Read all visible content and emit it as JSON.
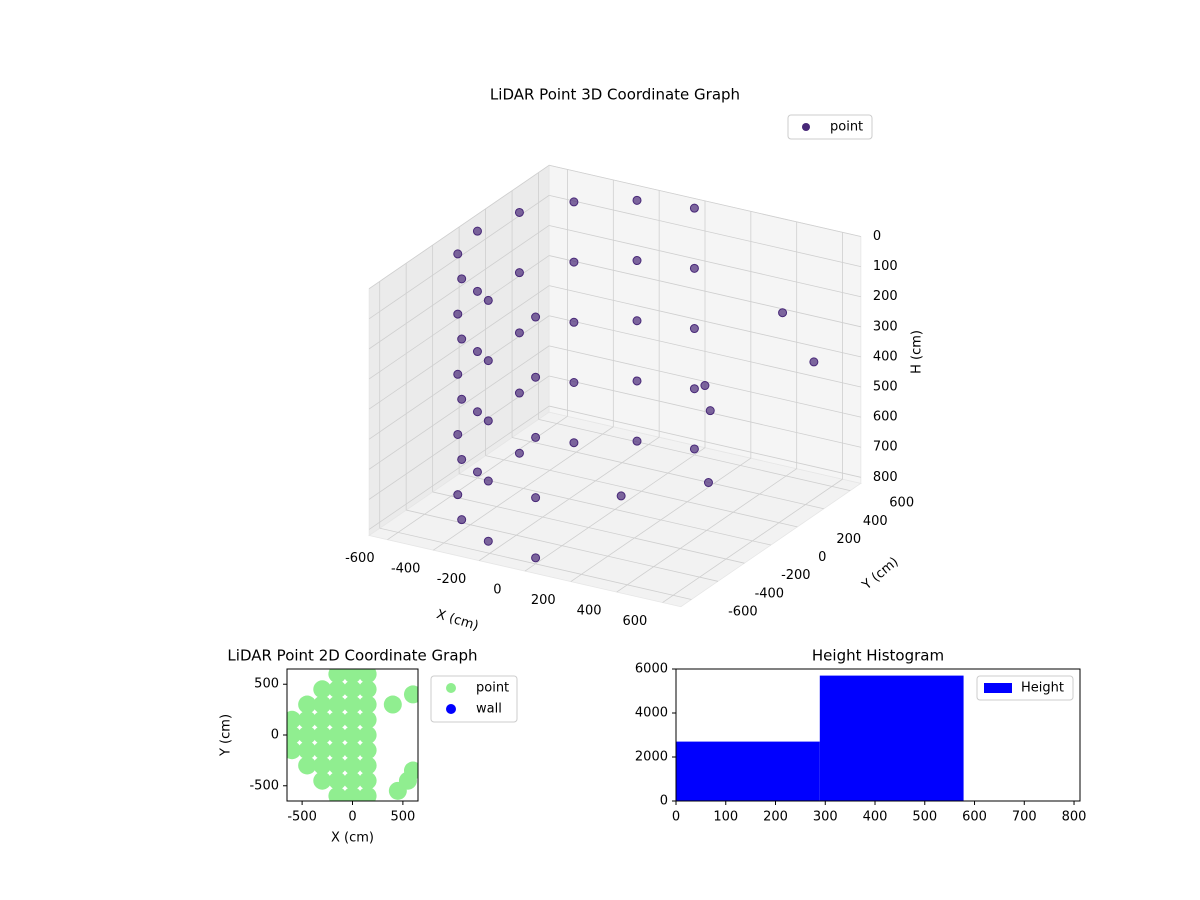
{
  "chart_data": [
    {
      "type": "scatter3d",
      "title": "LiDAR Point 3D Coordinate Graph",
      "xlabel": "X (cm)",
      "ylabel": "Y (cm)",
      "zlabel": "H (cm)",
      "xlim": [
        -680,
        680
      ],
      "ylim": [
        -680,
        680
      ],
      "zlim": [
        0,
        820
      ],
      "z_inverted": true,
      "xticks": [
        -600,
        -400,
        -200,
        0,
        200,
        400,
        600
      ],
      "yticks": [
        -600,
        -400,
        -200,
        0,
        200,
        400,
        600
      ],
      "zticks": [
        0,
        100,
        200,
        300,
        400,
        500,
        600,
        700,
        800
      ],
      "grid": true,
      "legend": "upper right",
      "series": [
        {
          "name": "point",
          "color": "#482878",
          "x": [
            0,
            -225,
            -424,
            -552,
            -600,
            -556,
            -424,
            -234,
            0,
            0,
            -225,
            -424,
            -552,
            -600,
            -556,
            -424,
            -234,
            0,
            0,
            -225,
            -424,
            -552,
            -600,
            -556,
            -424,
            -234,
            0,
            0,
            -225,
            -424,
            -552,
            -600,
            -556,
            -424,
            -234,
            0,
            0,
            -225,
            -424,
            -552,
            -600,
            -556,
            -424,
            -234,
            0,
            300,
            450,
            500,
            200,
            550,
            350
          ],
          "y": [
            600,
            556,
            424,
            234,
            0,
            -225,
            -424,
            -552,
            -600,
            600,
            556,
            424,
            234,
            0,
            -225,
            -424,
            -552,
            -600,
            600,
            556,
            424,
            234,
            0,
            -225,
            -424,
            -552,
            -600,
            600,
            556,
            424,
            234,
            0,
            -225,
            -424,
            -552,
            -600,
            600,
            556,
            424,
            234,
            0,
            -225,
            -424,
            -552,
            -600,
            200,
            -100,
            400,
            -300,
            550,
            100
          ],
          "z": [
            0,
            0,
            0,
            0,
            0,
            0,
            0,
            0,
            0,
            200,
            200,
            200,
            200,
            200,
            200,
            200,
            200,
            200,
            400,
            400,
            400,
            400,
            400,
            400,
            400,
            400,
            400,
            600,
            600,
            600,
            600,
            600,
            600,
            600,
            600,
            600,
            800,
            800,
            800,
            800,
            800,
            800,
            800,
            800,
            800,
            500,
            300,
            200,
            650,
            400,
            700
          ]
        }
      ]
    },
    {
      "type": "scatter",
      "title": "LiDAR Point 2D Coordinate Graph",
      "xlabel": "X (cm)",
      "ylabel": "Y (cm)",
      "xlim": [
        -650,
        650
      ],
      "ylim": [
        -650,
        650
      ],
      "xticks": [
        -500,
        0,
        500
      ],
      "yticks": [
        -500,
        0,
        500
      ],
      "legend": "outside right",
      "series": [
        {
          "name": "point",
          "color": "#90ee90",
          "x": [
            -600,
            -600,
            -600,
            -450,
            -450,
            -450,
            -450,
            -450,
            -300,
            -300,
            -300,
            -300,
            -300,
            -300,
            -300,
            -150,
            -150,
            -150,
            -150,
            -150,
            -150,
            -150,
            -150,
            -150,
            0,
            0,
            0,
            0,
            0,
            0,
            0,
            0,
            0,
            150,
            150,
            150,
            150,
            150,
            150,
            150,
            150,
            150,
            600,
            550,
            450,
            400,
            600
          ],
          "y": [
            -150,
            0,
            150,
            -300,
            -150,
            0,
            150,
            300,
            -450,
            -300,
            -150,
            0,
            150,
            300,
            450,
            -600,
            -450,
            -300,
            -150,
            0,
            150,
            300,
            450,
            600,
            -600,
            -450,
            -300,
            -150,
            0,
            150,
            300,
            450,
            600,
            -600,
            -450,
            -300,
            -150,
            0,
            150,
            300,
            450,
            600,
            400,
            -450,
            -550,
            300,
            -350
          ]
        },
        {
          "name": "wall",
          "color": "#0000ff",
          "x": [],
          "y": []
        }
      ]
    },
    {
      "type": "histogram",
      "title": "Height Histogram",
      "bins": [
        0,
        289,
        578,
        867
      ],
      "counts": [
        2700,
        5700,
        20
      ],
      "color": "#0000ff",
      "name": "Height",
      "xlim": [
        0,
        812
      ],
      "ylim": [
        0,
        6000
      ],
      "xticks": [
        0,
        100,
        200,
        300,
        400,
        500,
        600,
        700,
        800
      ],
      "yticks": [
        0,
        2000,
        4000,
        6000
      ],
      "legend": "upper right"
    }
  ]
}
